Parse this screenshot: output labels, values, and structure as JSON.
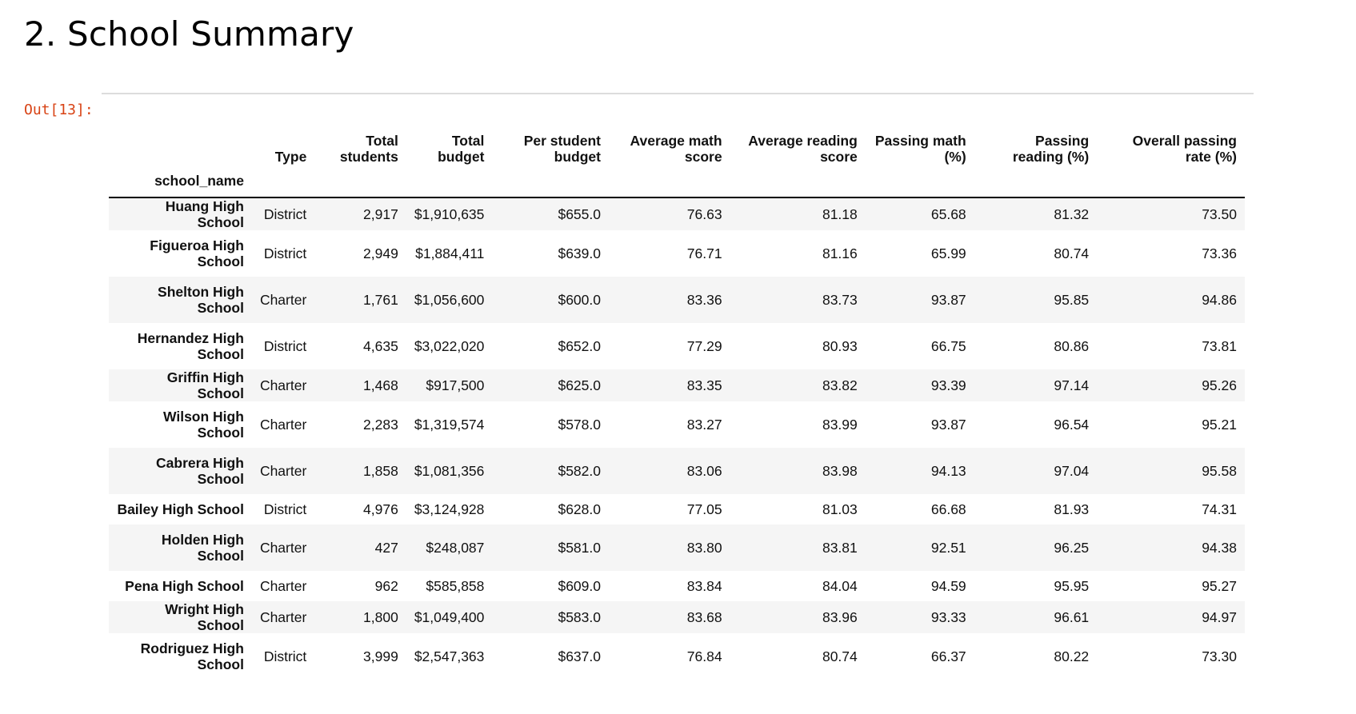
{
  "heading": "2. School Summary",
  "prompt": "Out[13]:",
  "table": {
    "index_name": "school_name",
    "columns": [
      "Type",
      "Total students",
      "Total budget",
      "Per student budget",
      "Average math score",
      "Average reading score",
      "Passing math (%)",
      "Passing reading (%)",
      "Overall passing rate (%)"
    ],
    "rows": [
      {
        "name": "Huang High School",
        "cells": [
          "District",
          "2,917",
          "$1,910,635",
          "$655.0",
          "76.63",
          "81.18",
          "65.68",
          "81.32",
          "73.50"
        ]
      },
      {
        "name": "Figueroa High School",
        "cells": [
          "District",
          "2,949",
          "$1,884,411",
          "$639.0",
          "76.71",
          "81.16",
          "65.99",
          "80.74",
          "73.36"
        ]
      },
      {
        "name": "Shelton High School",
        "cells": [
          "Charter",
          "1,761",
          "$1,056,600",
          "$600.0",
          "83.36",
          "83.73",
          "93.87",
          "95.85",
          "94.86"
        ]
      },
      {
        "name": "Hernandez High School",
        "cells": [
          "District",
          "4,635",
          "$3,022,020",
          "$652.0",
          "77.29",
          "80.93",
          "66.75",
          "80.86",
          "73.81"
        ]
      },
      {
        "name": "Griffin High School",
        "cells": [
          "Charter",
          "1,468",
          "$917,500",
          "$625.0",
          "83.35",
          "83.82",
          "93.39",
          "97.14",
          "95.26"
        ]
      },
      {
        "name": "Wilson High School",
        "cells": [
          "Charter",
          "2,283",
          "$1,319,574",
          "$578.0",
          "83.27",
          "83.99",
          "93.87",
          "96.54",
          "95.21"
        ]
      },
      {
        "name": "Cabrera High School",
        "cells": [
          "Charter",
          "1,858",
          "$1,081,356",
          "$582.0",
          "83.06",
          "83.98",
          "94.13",
          "97.04",
          "95.58"
        ]
      },
      {
        "name": "Bailey High School",
        "cells": [
          "District",
          "4,976",
          "$3,124,928",
          "$628.0",
          "77.05",
          "81.03",
          "66.68",
          "81.93",
          "74.31"
        ]
      },
      {
        "name": "Holden High School",
        "cells": [
          "Charter",
          "427",
          "$248,087",
          "$581.0",
          "83.80",
          "83.81",
          "92.51",
          "96.25",
          "94.38"
        ]
      },
      {
        "name": "Pena High School",
        "cells": [
          "Charter",
          "962",
          "$585,858",
          "$609.0",
          "83.84",
          "84.04",
          "94.59",
          "95.95",
          "95.27"
        ]
      },
      {
        "name": "Wright High School",
        "cells": [
          "Charter",
          "1,800",
          "$1,049,400",
          "$583.0",
          "83.68",
          "83.96",
          "93.33",
          "96.61",
          "94.97"
        ]
      },
      {
        "name": "Rodriguez High School",
        "cells": [
          "District",
          "3,999",
          "$2,547,363",
          "$637.0",
          "76.84",
          "80.74",
          "66.37",
          "80.22",
          "73.30"
        ]
      }
    ]
  }
}
